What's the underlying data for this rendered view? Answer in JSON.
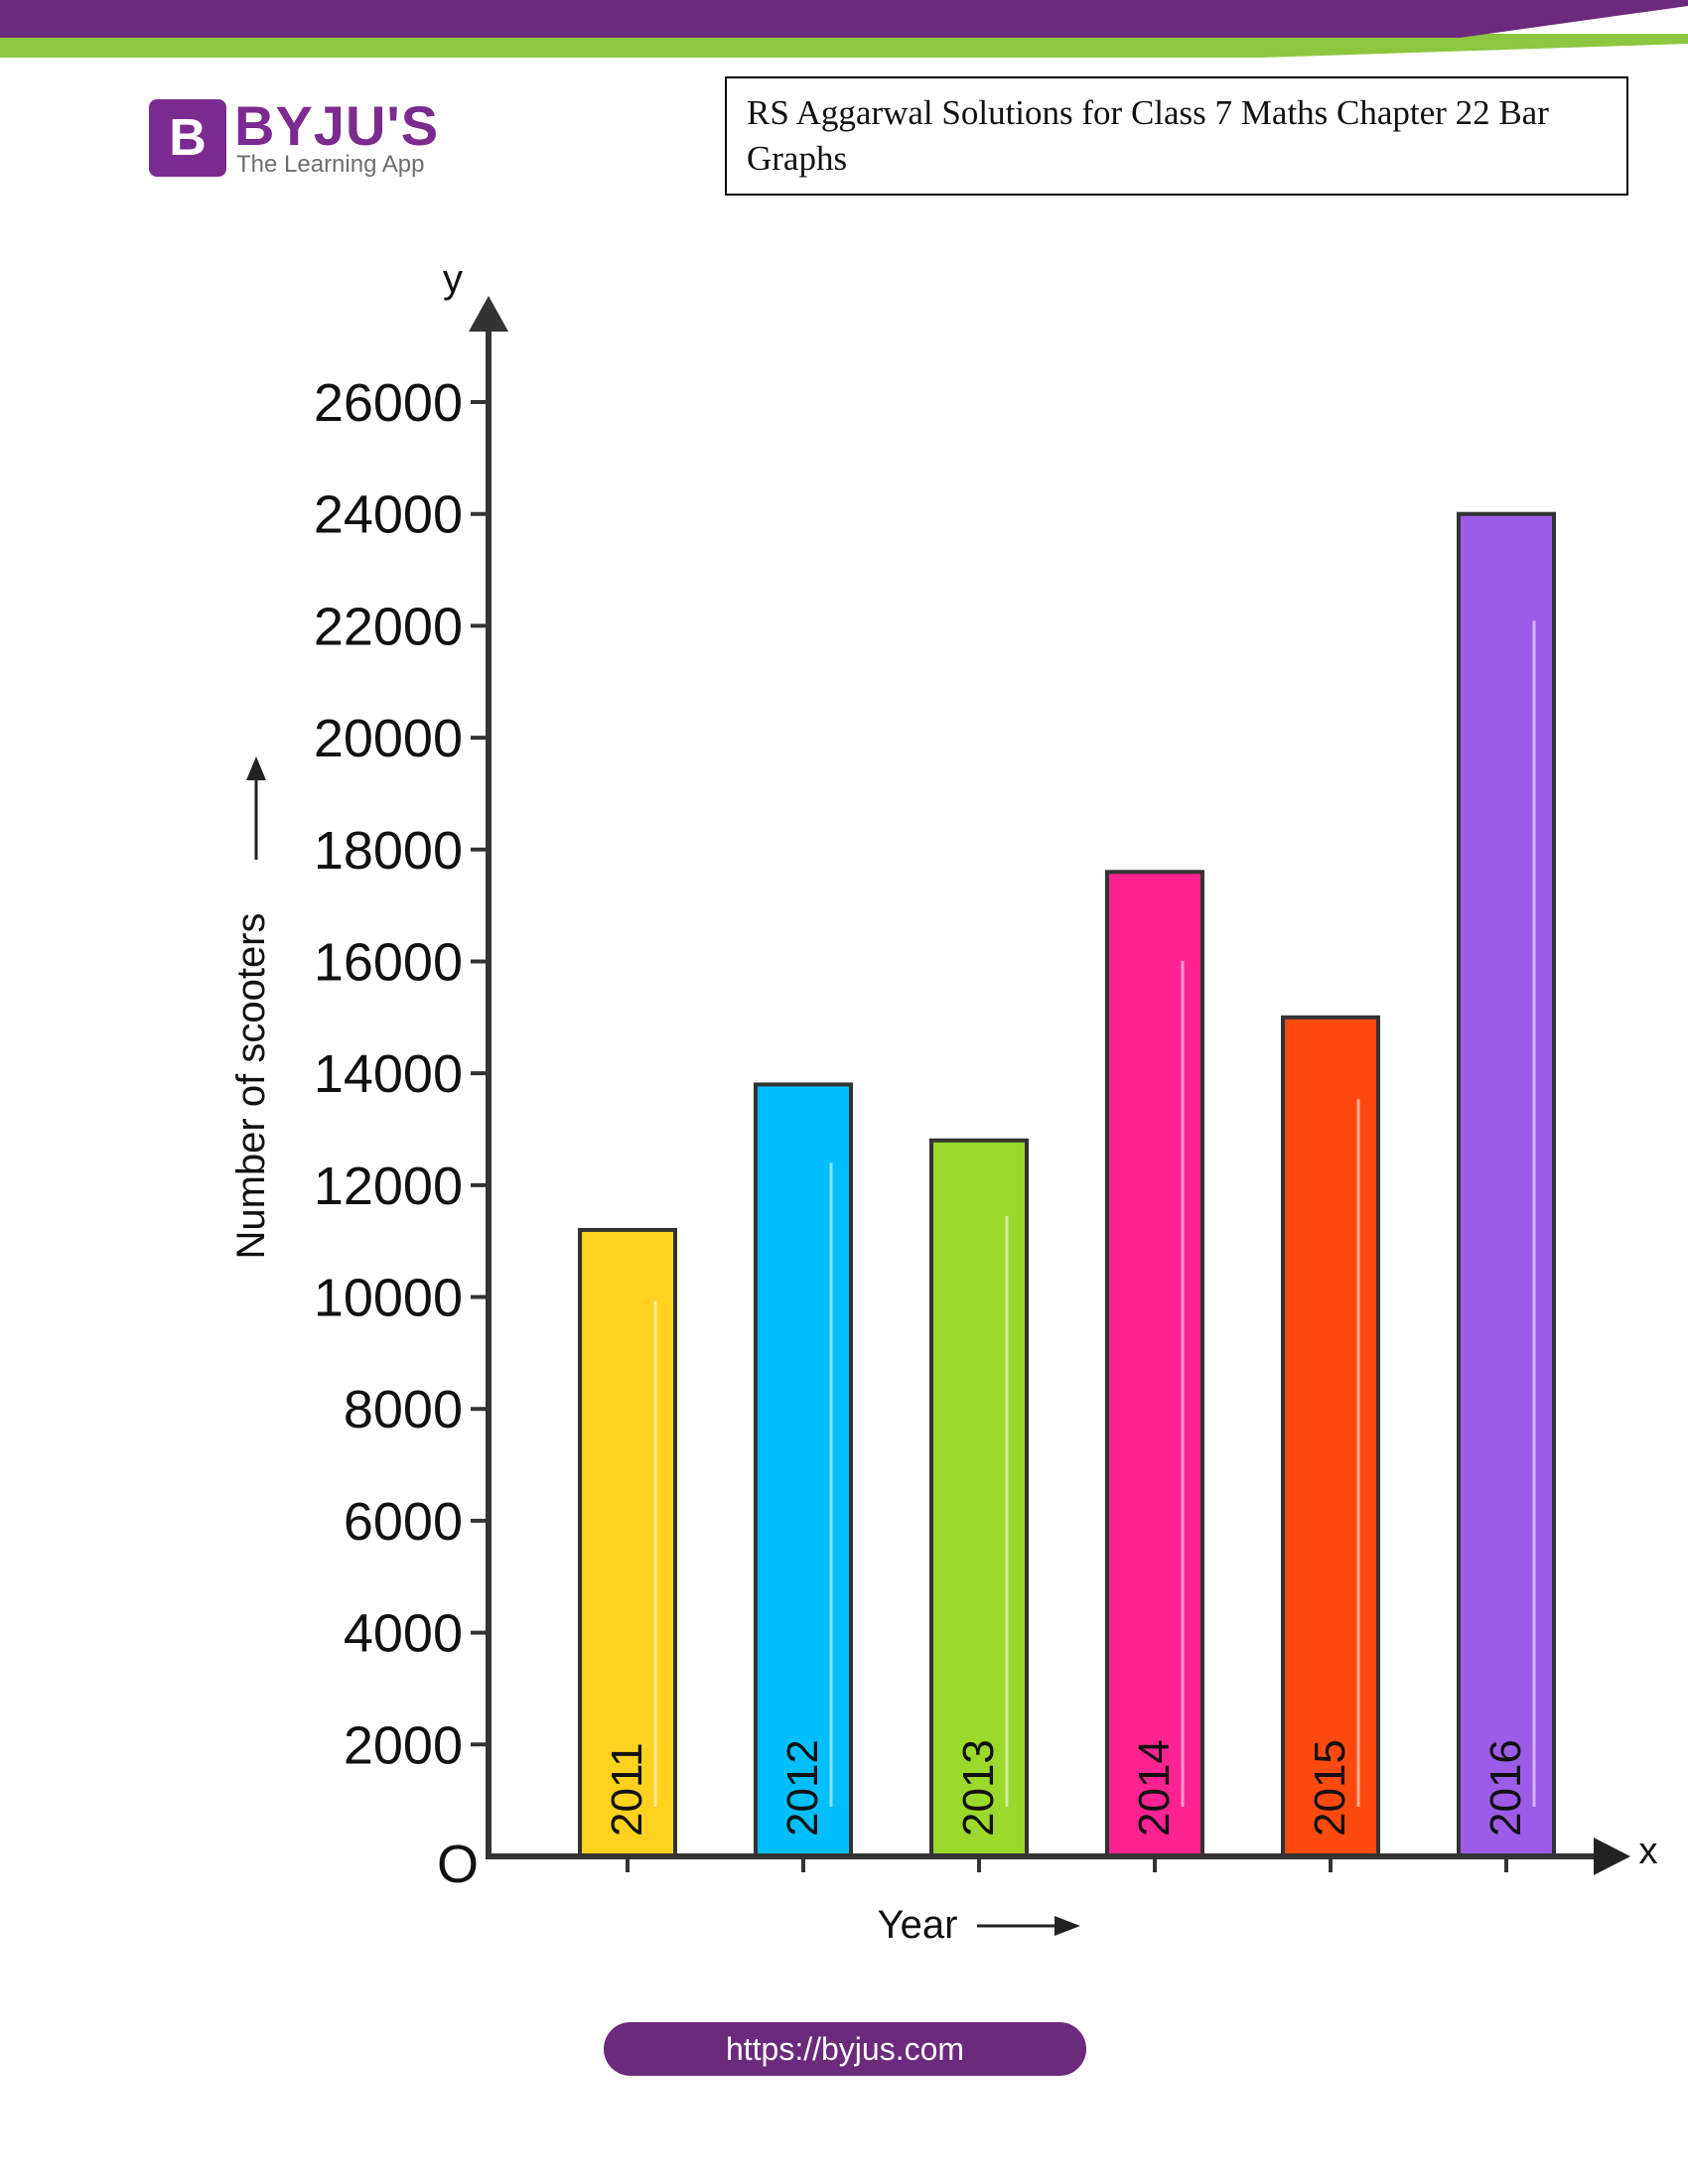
{
  "brand": {
    "name": "BYJU'S",
    "tagline": "The Learning App",
    "mark": "B",
    "colors": {
      "primary": "#7b2a8f",
      "banner_purple": "#6b2a7b",
      "banner_green": "#8dc63f"
    }
  },
  "header": {
    "title": "RS Aggarwal Solutions for Class 7 Maths Chapter 22 Bar Graphs"
  },
  "footer": {
    "url": "https://byjus.com"
  },
  "chart_data": {
    "type": "bar",
    "orientation": "vertical",
    "categories": [
      "2011",
      "2012",
      "2013",
      "2014",
      "2015",
      "2016"
    ],
    "values": [
      11200,
      13800,
      12800,
      17600,
      15000,
      24000
    ],
    "bar_colors": [
      "#ffd21f",
      "#00bfff",
      "#9bd92b",
      "#ff2291",
      "#ff4a0f",
      "#9d5ce8"
    ],
    "category_labels_inside_bars": true,
    "xlabel": "Year",
    "ylabel": "Number of scooters",
    "x_axis_symbol": "x",
    "y_axis_symbol": "y",
    "origin_label": "O",
    "ylim": [
      0,
      26000
    ],
    "yticks": [
      2000,
      4000,
      6000,
      8000,
      10000,
      12000,
      14000,
      16000,
      18000,
      20000,
      22000,
      24000,
      26000
    ],
    "grid": false,
    "legend": "none"
  }
}
